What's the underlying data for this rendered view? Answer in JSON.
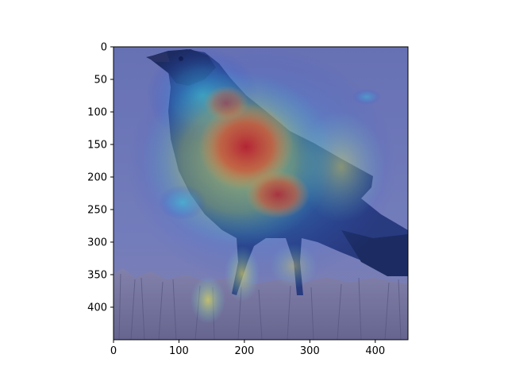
{
  "figure": {
    "type": "heatmap",
    "image_description_name": "crow-photo-with-saliency-heatmap",
    "colors": {
      "background": "#ffffff",
      "axis": "#000000",
      "sky": "#7b84b8",
      "ground": "#8b87a6",
      "heat_low": "#2b3fd6",
      "heat_mid_cyan": "#39d2e0",
      "heat_mid_yellow": "#f0e24a",
      "heat_high": "#d62a1e",
      "bird_dark": "#1b2a54"
    }
  },
  "chart_data": {
    "type": "heatmap",
    "xlim": [
      0,
      450
    ],
    "ylim": [
      450,
      0
    ],
    "x_ticks": [
      "0",
      "100",
      "200",
      "300",
      "400"
    ],
    "y_ticks": [
      "0",
      "50",
      "100",
      "150",
      "200",
      "250",
      "300",
      "350",
      "400"
    ],
    "grid": false
  }
}
